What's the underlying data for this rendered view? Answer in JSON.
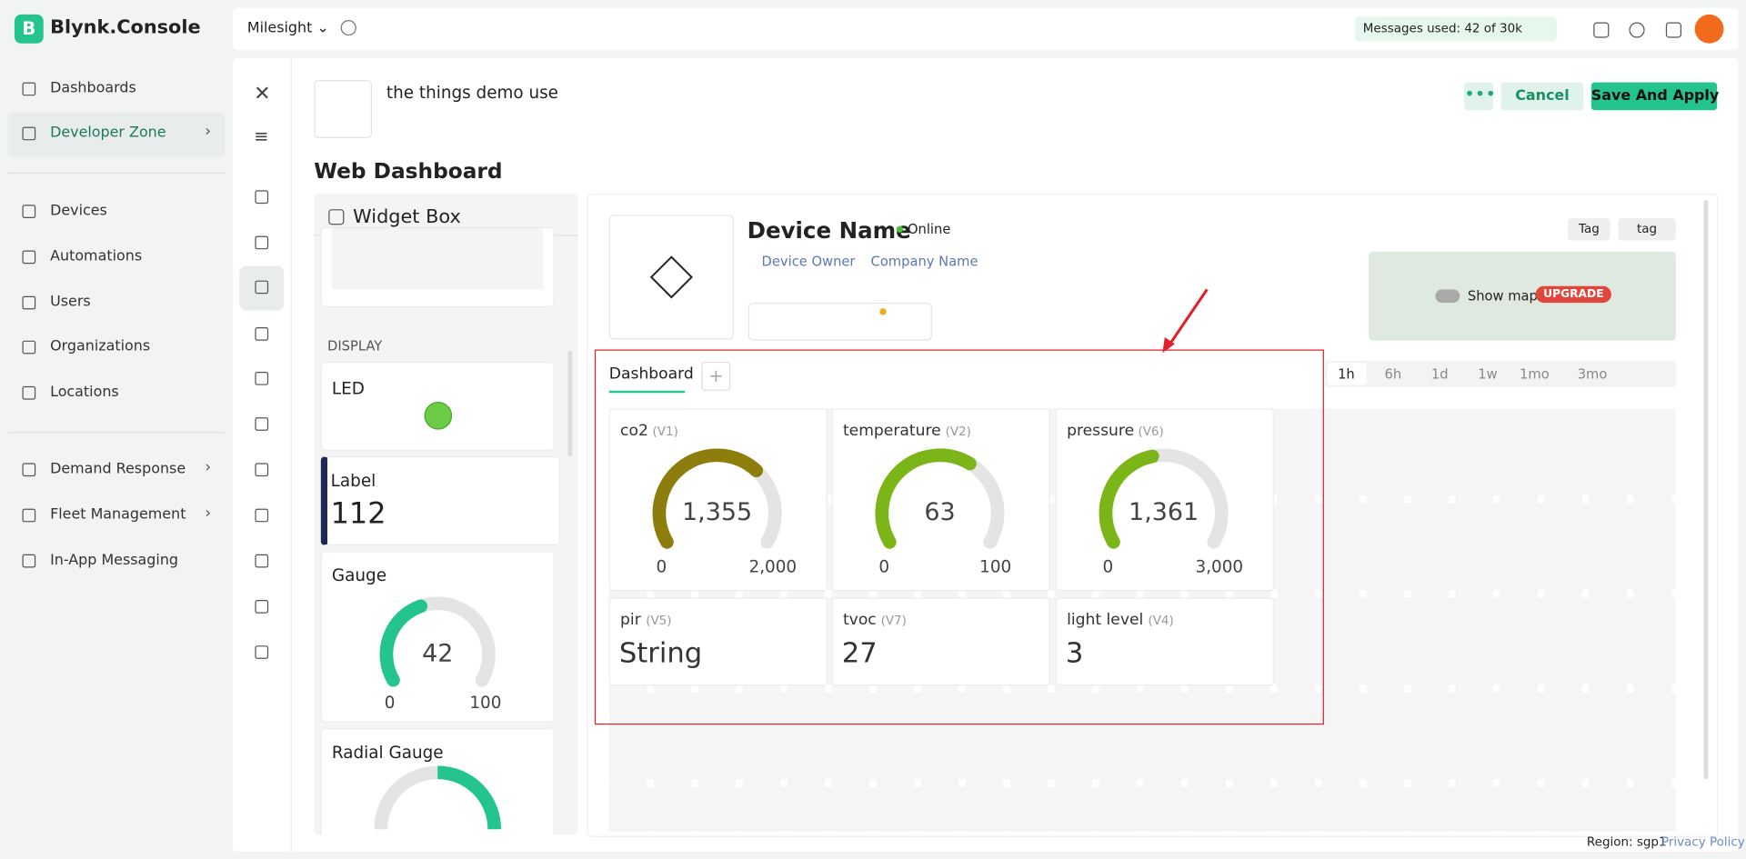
{
  "topbar": {
    "logo": "B",
    "brand": "Blynk.Console",
    "org": "Milesight",
    "messages_label": "Messages used:",
    "messages_value": "42 of 30k"
  },
  "sidebar": {
    "items": [
      "Dashboards",
      "Developer Zone",
      "Devices",
      "Automations",
      "Users",
      "Organizations",
      "Locations",
      "Demand Response",
      "Fleet Management",
      "In-App Messaging"
    ]
  },
  "header": {
    "template_name": "the things demo use",
    "section_title": "Web Dashboard",
    "cancel": "Cancel",
    "save": "Save And Apply"
  },
  "widget_box": {
    "title": "Widget Box",
    "section": "DISPLAY",
    "led": "LED",
    "label_title": "Label",
    "label_value": "112",
    "gauge": {
      "title": "Gauge",
      "value": 42,
      "min": 0,
      "max": 100
    },
    "radial_title": "Radial Gauge"
  },
  "device": {
    "name": "Device Name",
    "status": "Online",
    "owner": "Device Owner",
    "company": "Company Name",
    "tags": [
      "Tag",
      "tag"
    ],
    "map_toggle": "Show map",
    "upgrade": "UPGRADE"
  },
  "dashboard": {
    "tab": "Dashboard",
    "time_ranges": [
      "1h",
      "6h",
      "1d",
      "1w",
      "1mo",
      "3mo"
    ],
    "gauges": [
      {
        "name": "co2",
        "pin": "(V1)",
        "value": {
          "value": 1355,
          "label": "1,355"
        },
        "min": 0,
        "max": {
          "value": 2000,
          "label": "2,000"
        },
        "color": "#8c7d0c"
      },
      {
        "name": "temperature",
        "pin": "(V2)",
        "value": 63,
        "min": 0,
        "max": 100,
        "color": "#7cb518"
      },
      {
        "name": "pressure",
        "pin": "(V6)",
        "value": {
          "value": 1361,
          "label": "1,361"
        },
        "min": 0,
        "max": {
          "value": 3000,
          "label": "3,000"
        },
        "color": "#7cb518"
      }
    ],
    "values": [
      {
        "name": "pir",
        "pin": "(V5)",
        "value": "String"
      },
      {
        "name": "tvoc",
        "pin": "(V7)",
        "value": "27"
      },
      {
        "name": "light level",
        "pin": "(V4)",
        "value": "3"
      }
    ]
  },
  "footer": {
    "region": "Region: sgp1",
    "privacy": "Privacy Policy"
  }
}
